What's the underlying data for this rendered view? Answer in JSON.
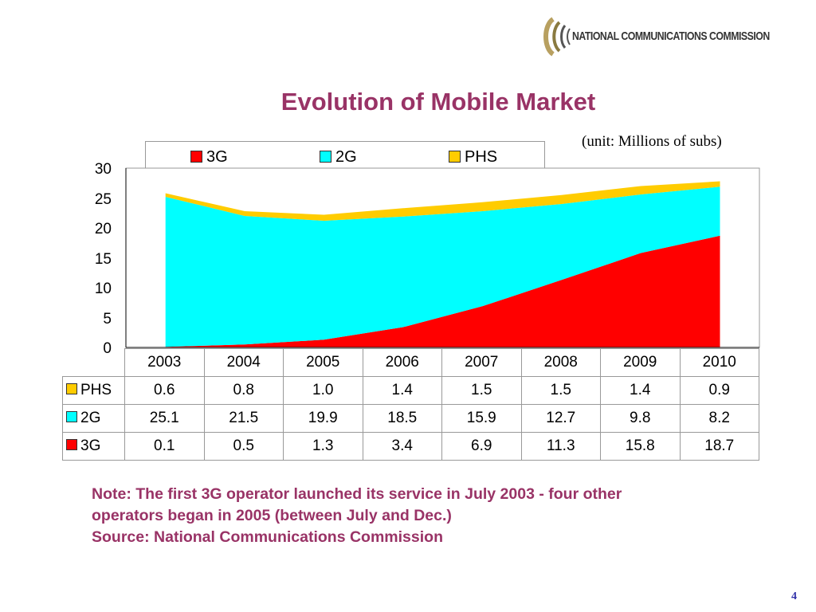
{
  "logo": {
    "text": "NATIONAL COMMUNICATIONS COMMISSION",
    "icon": "ncc-logo-icon",
    "color": "#b8a060"
  },
  "slide": {
    "title": "Evolution of Mobile Market",
    "unit": "(unit: Millions of subs)",
    "page_number": "4"
  },
  "note": {
    "line1": "Note: The first 3G operator launched its service in July 2003 -  four other",
    "line2": "operators began in 2005 (between July and Dec.)",
    "line3": "Source: National Communications Commission"
  },
  "colors": {
    "3G": "#ff0000",
    "2G": "#00ffff",
    "PHS": "#ffcc00",
    "accent": "#993366"
  },
  "chart_data": {
    "type": "area",
    "stacked": true,
    "categories": [
      "2003",
      "2004",
      "2005",
      "2006",
      "2007",
      "2008",
      "2009",
      "2010"
    ],
    "series": [
      {
        "name": "3G",
        "values": [
          0.1,
          0.5,
          1.3,
          3.4,
          6.9,
          11.3,
          15.8,
          18.7
        ]
      },
      {
        "name": "2G",
        "values": [
          25.1,
          21.5,
          19.9,
          18.5,
          15.9,
          12.7,
          9.8,
          8.2
        ]
      },
      {
        "name": "PHS",
        "values": [
          0.6,
          0.8,
          1.0,
          1.4,
          1.5,
          1.5,
          1.4,
          0.9
        ]
      }
    ],
    "ylim": [
      0,
      30
    ],
    "yticks": [
      "0",
      "5",
      "10",
      "15",
      "20",
      "25",
      "30"
    ],
    "legend": {
      "position": "top",
      "entries": [
        "3G",
        "2G",
        "PHS"
      ]
    },
    "table": {
      "rows": [
        {
          "label": "PHS",
          "values": [
            "0.6",
            "0.8",
            "1.0",
            "1.4",
            "1.5",
            "1.5",
            "1.4",
            "0.9"
          ]
        },
        {
          "label": "2G",
          "values": [
            "25.1",
            "21.5",
            "19.9",
            "18.5",
            "15.9",
            "12.7",
            "9.8",
            "8.2"
          ]
        },
        {
          "label": "3G",
          "values": [
            "0.1",
            "0.5",
            "1.3",
            "3.4",
            "6.9",
            "11.3",
            "15.8",
            "18.7"
          ]
        }
      ]
    },
    "grid": false
  }
}
